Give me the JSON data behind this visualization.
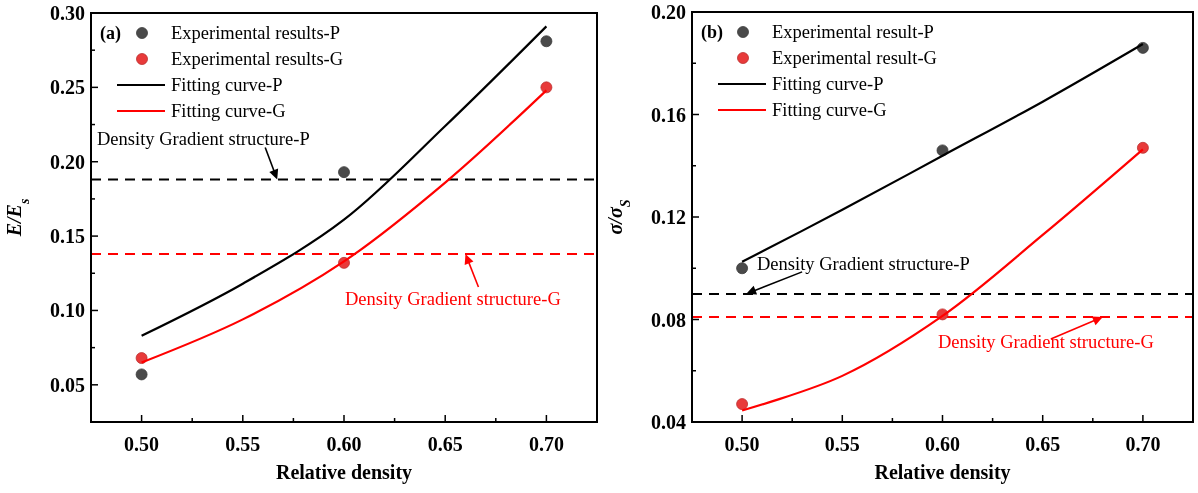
{
  "chart_data": [
    {
      "type": "scatter",
      "title": "(a)",
      "xlabel": "Relative density",
      "ylabel": "E/E$_{s}$",
      "xlim": [
        0.475,
        0.725
      ],
      "ylim": [
        0.025,
        0.3
      ],
      "xticks": [
        {
          "value": 0.5,
          "label": "0.50"
        },
        {
          "value": 0.525,
          "label": null
        },
        {
          "value": 0.55,
          "label": "0.55"
        },
        {
          "value": 0.575,
          "label": null
        },
        {
          "value": 0.6,
          "label": "0.60"
        },
        {
          "value": 0.625,
          "label": null
        },
        {
          "value": 0.65,
          "label": "0.65"
        },
        {
          "value": 0.675,
          "label": null
        },
        {
          "value": 0.7,
          "label": "0.70"
        }
      ],
      "yticks": [
        {
          "value": 0.05,
          "label": "0.05"
        },
        {
          "value": 0.075,
          "label": null
        },
        {
          "value": 0.1,
          "label": "0.10"
        },
        {
          "value": 0.125,
          "label": null
        },
        {
          "value": 0.15,
          "label": "0.15"
        },
        {
          "value": 0.175,
          "label": null
        },
        {
          "value": 0.2,
          "label": "0.20"
        },
        {
          "value": 0.225,
          "label": null
        },
        {
          "value": 0.25,
          "label": "0.25"
        },
        {
          "value": 0.275,
          "label": null
        },
        {
          "value": 0.3,
          "label": "0.30"
        }
      ],
      "legend": "top left",
      "grid": false,
      "series": [
        {
          "name": "Experimental results-P",
          "marker": "circle",
          "color": "#4a4a4a",
          "x": [
            0.5,
            0.6,
            0.7
          ],
          "values": [
            0.057,
            0.193,
            0.281
          ]
        },
        {
          "name": "Experimental results-G",
          "marker": "circle",
          "color": "#e83a3a",
          "x": [
            0.5,
            0.6,
            0.7
          ],
          "values": [
            0.068,
            0.132,
            0.25
          ]
        },
        {
          "name": "Fitting curve-P",
          "type": "line",
          "marker": "none",
          "color": "#000000",
          "x": [
            0.5,
            0.55,
            0.6,
            0.65,
            0.7
          ],
          "values": [
            0.083,
            0.118,
            0.161,
            0.224,
            0.291
          ]
        },
        {
          "name": "Fitting curve-G",
          "type": "line",
          "marker": "none",
          "color": "#ff0000",
          "x": [
            0.5,
            0.55,
            0.6,
            0.65,
            0.7
          ],
          "values": [
            0.065,
            0.094,
            0.133,
            0.186,
            0.248
          ]
        }
      ],
      "ref_lines": [
        {
          "axis": "y",
          "value": 0.188,
          "label": "Density Gradient structure-P",
          "color": "#000000",
          "line_style": "dashed"
        },
        {
          "axis": "y",
          "value": 0.138,
          "label": "Density Gradient structure-G",
          "color": "#ff0000",
          "line_style": "dashed"
        }
      ]
    },
    {
      "type": "scatter",
      "title": "(b)",
      "xlabel": "Relative density",
      "ylabel": "σ/σ$_{S}$",
      "xlim": [
        0.475,
        0.725
      ],
      "ylim": [
        0.04,
        0.2
      ],
      "xticks": [
        {
          "value": 0.5,
          "label": "0.50"
        },
        {
          "value": 0.525,
          "label": null
        },
        {
          "value": 0.55,
          "label": "0.55"
        },
        {
          "value": 0.575,
          "label": null
        },
        {
          "value": 0.6,
          "label": "0.60"
        },
        {
          "value": 0.625,
          "label": null
        },
        {
          "value": 0.65,
          "label": "0.65"
        },
        {
          "value": 0.675,
          "label": null
        },
        {
          "value": 0.7,
          "label": "0.70"
        }
      ],
      "yticks": [
        {
          "value": 0.04,
          "label": "0.04"
        },
        {
          "value": 0.06,
          "label": null
        },
        {
          "value": 0.08,
          "label": "0.08"
        },
        {
          "value": 0.1,
          "label": null
        },
        {
          "value": 0.12,
          "label": "0.12"
        },
        {
          "value": 0.14,
          "label": null
        },
        {
          "value": 0.16,
          "label": "0.16"
        },
        {
          "value": 0.18,
          "label": null
        },
        {
          "value": 0.2,
          "label": "0.20"
        }
      ],
      "legend": "top left",
      "grid": false,
      "series": [
        {
          "name": "Experimental result-P",
          "marker": "circle",
          "color": "#4a4a4a",
          "x": [
            0.5,
            0.6,
            0.7
          ],
          "values": [
            0.1,
            0.146,
            0.186
          ]
        },
        {
          "name": "Experimental result-G",
          "marker": "circle",
          "color": "#e83a3a",
          "x": [
            0.5,
            0.6,
            0.7
          ],
          "values": [
            0.047,
            0.082,
            0.147
          ]
        },
        {
          "name": "Fitting curve-P",
          "type": "line",
          "marker": "none",
          "color": "#000000",
          "x": [
            0.5,
            0.55,
            0.6,
            0.65,
            0.7
          ],
          "values": [
            0.1025,
            0.1228,
            0.1439,
            0.165,
            0.1875
          ]
        },
        {
          "name": "Fitting curve-G",
          "type": "line",
          "marker": "none",
          "color": "#ff0000",
          "x": [
            0.5,
            0.55,
            0.6,
            0.65,
            0.7
          ],
          "values": [
            0.0445,
            0.058,
            0.0814,
            0.113,
            0.1464
          ]
        }
      ],
      "ref_lines": [
        {
          "axis": "y",
          "value": 0.09,
          "label": "Density Gradient structure-P",
          "color": "#000000",
          "line_style": "dashed"
        },
        {
          "axis": "y",
          "value": 0.081,
          "label": "Density Gradient structure-G",
          "color": "#ff0000",
          "line_style": "dashed"
        }
      ]
    }
  ]
}
